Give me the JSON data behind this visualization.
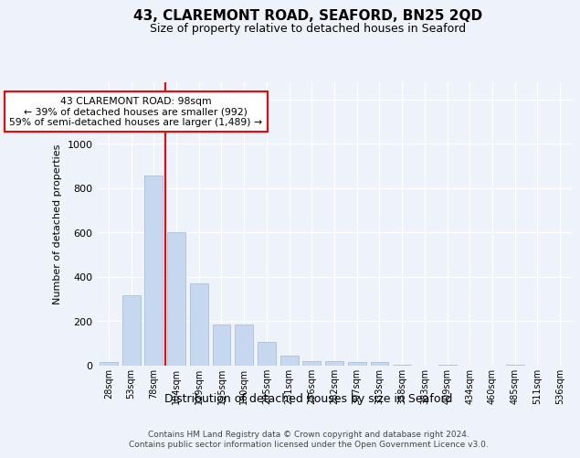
{
  "title1": "43, CLAREMONT ROAD, SEAFORD, BN25 2QD",
  "title2": "Size of property relative to detached houses in Seaford",
  "xlabel": "Distribution of detached houses by size in Seaford",
  "ylabel": "Number of detached properties",
  "bins": [
    "28sqm",
    "53sqm",
    "78sqm",
    "104sqm",
    "129sqm",
    "155sqm",
    "180sqm",
    "205sqm",
    "231sqm",
    "256sqm",
    "282sqm",
    "307sqm",
    "333sqm",
    "358sqm",
    "383sqm",
    "409sqm",
    "434sqm",
    "460sqm",
    "485sqm",
    "511sqm",
    "536sqm"
  ],
  "values": [
    15,
    315,
    855,
    600,
    370,
    185,
    185,
    105,
    45,
    20,
    20,
    15,
    15,
    3,
    0,
    3,
    0,
    0,
    3,
    0,
    0
  ],
  "bar_color": "#c5d8f0",
  "bar_edge_color": "#a0b8d8",
  "vline_x": 2.5,
  "annotation_text": "43 CLAREMONT ROAD: 98sqm\n← 39% of detached houses are smaller (992)\n59% of semi-detached houses are larger (1,489) →",
  "annotation_box_color": "white",
  "annotation_box_edge_color": "red",
  "vline_color": "red",
  "ylim": [
    0,
    1280
  ],
  "yticks": [
    0,
    200,
    400,
    600,
    800,
    1000,
    1200
  ],
  "footer1": "Contains HM Land Registry data © Crown copyright and database right 2024.",
  "footer2": "Contains public sector information licensed under the Open Government Licence v3.0.",
  "bg_color": "#eef2fa",
  "title_fontsize": 11,
  "subtitle_fontsize": 9,
  "ylabel_fontsize": 8,
  "xlabel_fontsize": 9,
  "tick_fontsize": 7,
  "footer_fontsize": 6.5
}
